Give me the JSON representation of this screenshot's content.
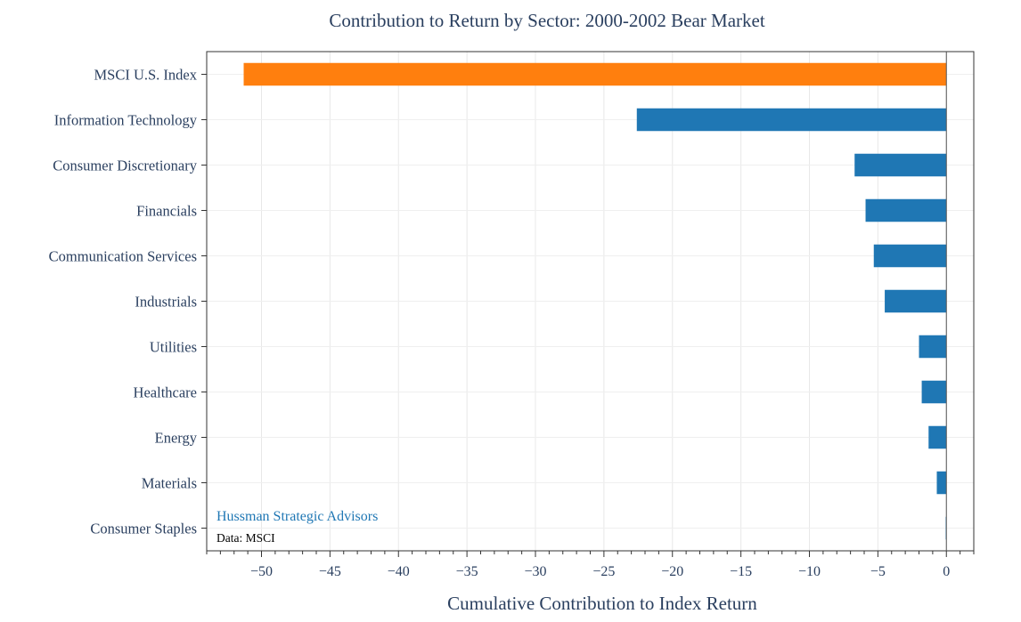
{
  "chart_data": {
    "type": "bar",
    "orientation": "horizontal",
    "title": "Contribution to Return by Sector: 2000-2002 Bear Market",
    "xlabel": "Cumulative Contribution to Index Return",
    "ylabel": "",
    "xlim": [
      -54,
      2
    ],
    "x_ticks": [
      -50,
      -45,
      -40,
      -35,
      -30,
      -25,
      -20,
      -15,
      -10,
      -5,
      0
    ],
    "x_tick_labels": [
      "−50",
      "−45",
      "−40",
      "−35",
      "−30",
      "−25",
      "−20",
      "−15",
      "−10",
      "−5",
      "0"
    ],
    "grid": true,
    "categories": [
      "MSCI U.S. Index",
      "Information Technology",
      "Consumer Discretionary",
      "Financials",
      "Communication Services",
      "Industrials",
      "Utilities",
      "Healthcare",
      "Energy",
      "Materials",
      "Consumer Staples"
    ],
    "values": [
      -51.3,
      -22.6,
      -6.7,
      -5.9,
      -5.3,
      -4.5,
      -2.0,
      -1.8,
      -1.3,
      -0.7,
      -0.05
    ],
    "colors": [
      "#ff7f0e",
      "#1f77b4",
      "#1f77b4",
      "#1f77b4",
      "#1f77b4",
      "#1f77b4",
      "#1f77b4",
      "#1f77b4",
      "#1f77b4",
      "#1f77b4",
      "#1f77b4"
    ],
    "annotations": {
      "brand": "Hussman Strategic Advisors",
      "source": "Data: MSCI"
    }
  },
  "colors": {
    "highlight": "#ff7f0e",
    "bar": "#1f77b4",
    "text": "#2a3f5f",
    "grid": "#e8e8e8",
    "frame": "#333333"
  }
}
